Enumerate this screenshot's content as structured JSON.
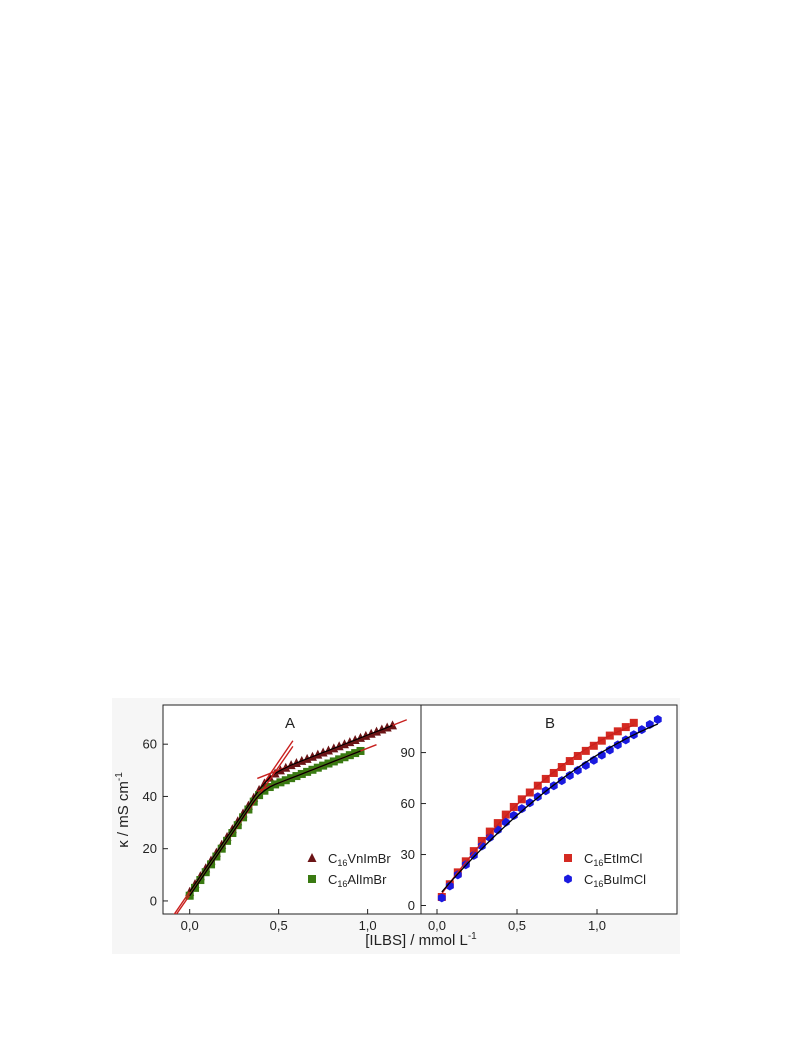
{
  "figure": {
    "xlabel_main": "[ILBS] / mmol L",
    "xlabel_sup": "-1",
    "ylabel_main": "κ / mS cm",
    "ylabel_sup": "-1"
  },
  "chart_data": [
    {
      "type": "scatter",
      "panel_label": "A",
      "xlabel": "[ILBS] / mmol L-1",
      "ylabel": "κ / mS cm-1",
      "xlim": [
        -0.15,
        1.3
      ],
      "ylim": [
        -5,
        75
      ],
      "x_ticks": [
        "0,0",
        "0,5",
        "1,0"
      ],
      "x_tick_values": [
        0,
        0.5,
        1.0
      ],
      "y_ticks": [
        "0",
        "20",
        "40",
        "60"
      ],
      "y_tick_values": [
        0,
        20,
        40,
        60
      ],
      "grid": false,
      "legend_position": "lower-right",
      "colors": {
        "fit_line": "#c8201e",
        "curve": "#000000"
      },
      "series": [
        {
          "legend_prefix": "C",
          "legend_sub": "16",
          "legend_suffix": "VnImBr",
          "marker": "triangle",
          "color": "#6b1416",
          "x": [
            0.0,
            0.03,
            0.06,
            0.09,
            0.12,
            0.15,
            0.18,
            0.21,
            0.24,
            0.27,
            0.3,
            0.33,
            0.36,
            0.39,
            0.42,
            0.45,
            0.48,
            0.51,
            0.54,
            0.57,
            0.6,
            0.63,
            0.66,
            0.69,
            0.72,
            0.75,
            0.78,
            0.81,
            0.84,
            0.87,
            0.9,
            0.93,
            0.96,
            0.99,
            1.02,
            1.05,
            1.08,
            1.11,
            1.14
          ],
          "y": [
            3.5,
            6.5,
            9.5,
            12.5,
            15.5,
            18.5,
            21.5,
            24.5,
            27.5,
            30.5,
            33.5,
            36.5,
            39.5,
            42.5,
            45.0,
            47.2,
            48.8,
            50.0,
            51.0,
            52.0,
            52.8,
            53.6,
            54.4,
            55.2,
            56.0,
            56.8,
            57.6,
            58.4,
            59.2,
            60.0,
            60.8,
            61.6,
            62.4,
            63.2,
            64.0,
            64.8,
            65.6,
            66.4,
            67.2
          ]
        },
        {
          "legend_prefix": "C",
          "legend_sub": "16",
          "legend_suffix": "AlImBr",
          "marker": "square",
          "color": "#3a7a12",
          "x": [
            0.0,
            0.03,
            0.06,
            0.09,
            0.12,
            0.15,
            0.18,
            0.21,
            0.24,
            0.27,
            0.3,
            0.33,
            0.36,
            0.39,
            0.42,
            0.45,
            0.48,
            0.51,
            0.54,
            0.57,
            0.6,
            0.63,
            0.66,
            0.69,
            0.72,
            0.75,
            0.78,
            0.81,
            0.84,
            0.87,
            0.9,
            0.93,
            0.96
          ],
          "y": [
            2.0,
            5.0,
            8.0,
            11.0,
            14.0,
            17.0,
            20.0,
            23.0,
            26.0,
            29.0,
            32.0,
            35.0,
            38.0,
            40.5,
            42.2,
            43.6,
            44.6,
            45.4,
            46.2,
            47.0,
            47.8,
            48.6,
            49.4,
            50.2,
            51.0,
            51.8,
            52.6,
            53.4,
            54.2,
            55.0,
            55.8,
            56.6,
            57.4
          ]
        }
      ]
    },
    {
      "type": "scatter",
      "panel_label": "B",
      "xlabel": "[ILBS] / mmol L-1",
      "ylabel": "",
      "xlim": [
        -0.1,
        1.5
      ],
      "ylim": [
        -5,
        118
      ],
      "x_ticks": [
        "0,0",
        "0,5",
        "1,0"
      ],
      "x_tick_values": [
        0,
        0.5,
        1.0
      ],
      "y_ticks": [
        "0",
        "30",
        "60",
        "90"
      ],
      "y_tick_values": [
        0,
        30,
        60,
        90
      ],
      "grid": false,
      "legend_position": "lower-right",
      "colors": {
        "fit_line": "#c8201e",
        "curve": "#000000"
      },
      "series": [
        {
          "legend_prefix": "C",
          "legend_sub": "16",
          "legend_suffix": "EtImCl",
          "marker": "square",
          "color": "#d42a22",
          "x": [
            0.03,
            0.08,
            0.13,
            0.18,
            0.23,
            0.28,
            0.33,
            0.38,
            0.43,
            0.48,
            0.53,
            0.58,
            0.63,
            0.68,
            0.73,
            0.78,
            0.83,
            0.88,
            0.93,
            0.98,
            1.03,
            1.08,
            1.13,
            1.18,
            1.23
          ],
          "y": [
            5.0,
            12.5,
            19.5,
            26.0,
            32.0,
            38.0,
            43.5,
            48.5,
            53.5,
            58.0,
            62.5,
            66.5,
            70.5,
            74.5,
            78.0,
            81.5,
            85.0,
            88.0,
            91.0,
            94.0,
            97.0,
            100.0,
            102.5,
            105.0,
            107.5
          ]
        },
        {
          "legend_prefix": "C",
          "legend_sub": "16",
          "legend_suffix": "BuImCl",
          "marker": "hexagon",
          "color": "#1a1ae0",
          "x": [
            0.03,
            0.08,
            0.13,
            0.18,
            0.23,
            0.28,
            0.33,
            0.38,
            0.43,
            0.48,
            0.53,
            0.58,
            0.63,
            0.68,
            0.73,
            0.78,
            0.83,
            0.88,
            0.93,
            0.98,
            1.03,
            1.08,
            1.13,
            1.18,
            1.23,
            1.28,
            1.33,
            1.38
          ],
          "y": [
            4.5,
            11.5,
            18.0,
            24.0,
            29.5,
            35.0,
            40.0,
            44.5,
            49.0,
            53.0,
            57.0,
            60.5,
            64.0,
            67.5,
            70.5,
            73.5,
            76.5,
            79.5,
            82.5,
            85.5,
            88.5,
            91.5,
            94.5,
            97.5,
            100.5,
            103.5,
            106.5,
            109.5
          ]
        }
      ]
    }
  ]
}
